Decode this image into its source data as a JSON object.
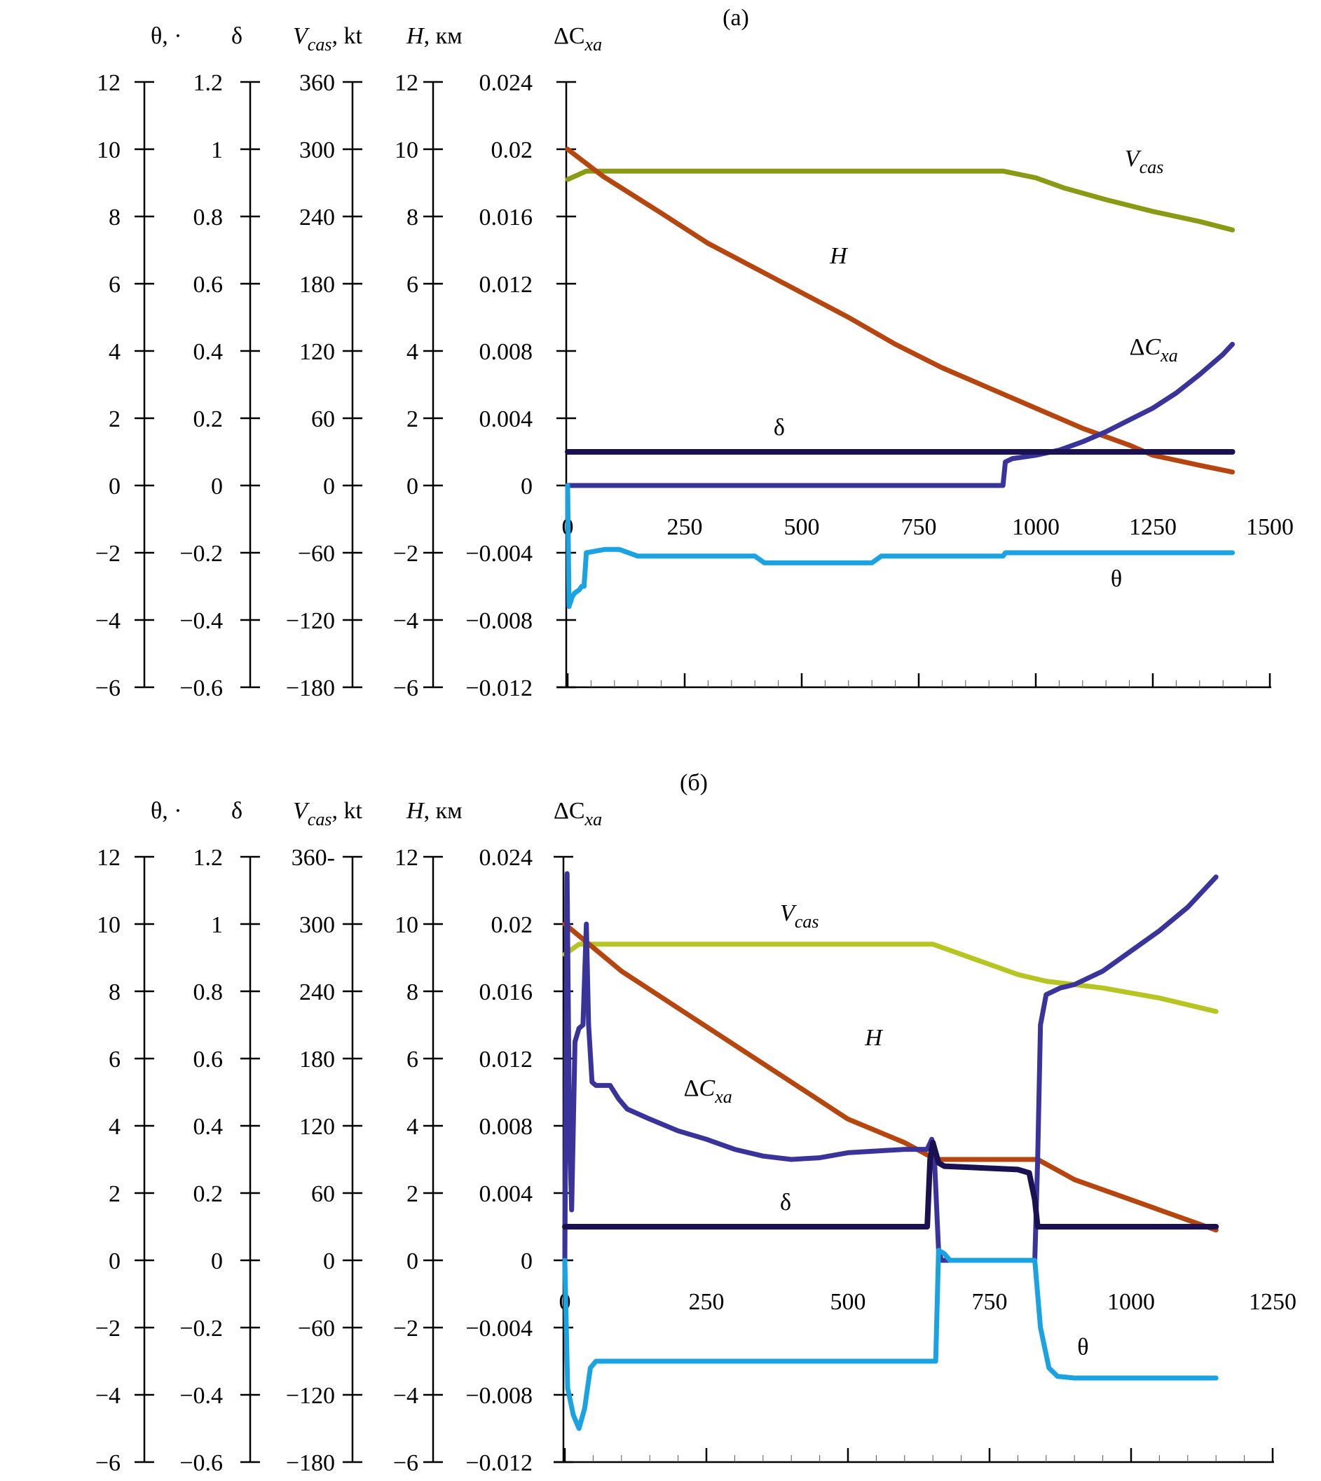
{
  "figure": {
    "panels": [
      "(a)",
      "(б)"
    ]
  },
  "axis_titles": {
    "theta": "θ, ·",
    "delta": "δ",
    "vcas_main": "V",
    "vcas_sub": "cas",
    "vcas_unit": ", kt",
    "h_main": "H",
    "h_unit": ", км",
    "dcxa_main": "ΔC",
    "dcxa_sub": "xa"
  },
  "left_axes": {
    "theta_ticks": [
      "12",
      "10",
      "8",
      "6",
      "4",
      "2",
      "0",
      "−2",
      "−4",
      "−6"
    ],
    "delta_ticks": [
      "1.2",
      "1",
      "0.8",
      "0.6",
      "0.4",
      "0.2",
      "0",
      "−0.2",
      "−0.4",
      "−0.6"
    ],
    "vcas_ticks_a": [
      "360",
      "300",
      "240",
      "180",
      "120",
      "60",
      "0",
      "−60",
      "−120",
      "−180"
    ],
    "vcas_ticks_b": [
      "360-",
      "300",
      "240",
      "180",
      "120",
      "60",
      "0",
      "−60",
      "−120",
      "−180"
    ],
    "h_ticks": [
      "12",
      "10",
      "8",
      "6",
      "4",
      "2",
      "0",
      "−2",
      "−4",
      "−6"
    ],
    "dcxa_ticks": [
      "0.024",
      "0.02",
      "0.016",
      "0.012",
      "0.008",
      "0.004",
      "0",
      "−0.004",
      "−0.008",
      "−0.012"
    ]
  },
  "colors": {
    "H": "#b5460f",
    "Vcas_a": "#8a9a14",
    "Vcas_b": "#b6c424",
    "dCxa": "#3a3399",
    "delta": "#1a1150",
    "theta": "#1aa3e0",
    "axis": "#000000"
  },
  "chart_data": [
    {
      "type": "line",
      "title": "(a)",
      "xlabel": "",
      "xlim": [
        0,
        1500
      ],
      "xticks": [
        "0",
        "250",
        "500",
        "750",
        "1000",
        "1250",
        "1500"
      ],
      "ylim": [
        -6,
        12
      ],
      "y_scale_note": "all series plotted on common scale: θ (deg) = value; δ = value/10; Vcas (kt) = value*30; H (km) = value; ΔCxa = value*0.002",
      "grid": false,
      "series": [
        {
          "name": "V",
          "sub": "cas",
          "color_key": "Vcas_a",
          "x": [
            0,
            40,
            200,
            500,
            930,
            1000,
            1060,
            1150,
            1250,
            1350,
            1420
          ],
          "y": [
            9.1,
            9.35,
            9.35,
            9.35,
            9.35,
            9.15,
            8.85,
            8.5,
            8.15,
            7.85,
            7.6
          ]
        },
        {
          "name": "H",
          "sub": "",
          "color_key": "H",
          "x": [
            0,
            75,
            200,
            300,
            450,
            600,
            700,
            800,
            900,
            1000,
            1100,
            1200,
            1250,
            1350,
            1420
          ],
          "y": [
            10,
            9.2,
            8.1,
            7.2,
            6.1,
            5.0,
            4.2,
            3.5,
            2.9,
            2.3,
            1.7,
            1.2,
            0.9,
            0.6,
            0.4
          ]
        },
        {
          "name": "ΔC",
          "sub": "xa",
          "color_key": "dCxa",
          "x": [
            0,
            930,
            935,
            950,
            1000,
            1050,
            1100,
            1150,
            1200,
            1250,
            1300,
            1350,
            1400,
            1420
          ],
          "y": [
            0,
            0,
            0.7,
            0.8,
            0.9,
            1.05,
            1.3,
            1.6,
            1.95,
            2.3,
            2.75,
            3.3,
            3.9,
            4.2
          ]
        },
        {
          "name": "δ",
          "sub": "",
          "color_key": "delta",
          "x": [
            0,
            1420
          ],
          "y": [
            1.0,
            1.0
          ]
        },
        {
          "name": "θ",
          "sub": "",
          "color_key": "theta",
          "x": [
            0,
            3,
            10,
            15,
            25,
            30,
            35,
            40,
            60,
            80,
            110,
            150,
            400,
            420,
            500,
            650,
            670,
            930,
            935,
            1420
          ],
          "y": [
            0,
            -3.6,
            -3.3,
            -3.2,
            -3.1,
            -3.0,
            -3.0,
            -2.0,
            -1.95,
            -1.9,
            -1.9,
            -2.1,
            -2.1,
            -2.3,
            -2.3,
            -2.3,
            -2.1,
            -2.1,
            -2.0,
            -2.0
          ]
        }
      ],
      "annotations": [
        {
          "text": "V",
          "sub": "cas",
          "x": 1190,
          "y": 9.5
        },
        {
          "text": "H",
          "sub": "",
          "x": 560,
          "y": 6.6
        },
        {
          "text": "ΔC",
          "sub": "xa",
          "x": 1200,
          "y": 3.9
        },
        {
          "text": "δ",
          "sub": "",
          "x": 440,
          "y": 1.5
        },
        {
          "text": "θ",
          "sub": "",
          "x": 1160,
          "y": -3.0
        }
      ]
    },
    {
      "type": "line",
      "title": "(б)",
      "xlabel": "",
      "xlim": [
        0,
        1250
      ],
      "xticks": [
        "0",
        "250",
        "500",
        "750",
        "1000",
        "1250"
      ],
      "ylim": [
        -6,
        12
      ],
      "y_scale_note": "all series plotted on common scale: θ (deg) = value; δ = value/10; Vcas (kt) = value*30; H (km) = value; ΔCxa = value*0.002",
      "grid": false,
      "series": [
        {
          "name": "V",
          "sub": "cas",
          "color_key": "Vcas_b",
          "x": [
            0,
            25,
            200,
            400,
            650,
            700,
            750,
            800,
            850,
            900,
            950,
            1000,
            1050,
            1100,
            1150
          ],
          "y": [
            9.1,
            9.4,
            9.4,
            9.4,
            9.4,
            9.1,
            8.8,
            8.5,
            8.3,
            8.2,
            8.1,
            7.95,
            7.8,
            7.6,
            7.4
          ]
        },
        {
          "name": "H",
          "sub": "",
          "color_key": "H",
          "x": [
            0,
            50,
            100,
            200,
            300,
            400,
            500,
            600,
            655,
            835,
            900,
            1000,
            1100,
            1150
          ],
          "y": [
            10,
            9.3,
            8.6,
            7.5,
            6.4,
            5.3,
            4.2,
            3.5,
            3.0,
            3.0,
            2.4,
            1.8,
            1.2,
            0.9
          ]
        },
        {
          "name": "ΔC",
          "sub": "xa",
          "color_key": "dCxa",
          "x": [
            0,
            4,
            8,
            12,
            18,
            25,
            32,
            38,
            42,
            48,
            55,
            80,
            95,
            110,
            150,
            200,
            250,
            300,
            350,
            400,
            450,
            500,
            550,
            600,
            640,
            648,
            652,
            660,
            665,
            830,
            835,
            840,
            850,
            875,
            900,
            950,
            1000,
            1050,
            1100,
            1150
          ],
          "y": [
            0,
            11.5,
            4.0,
            1.5,
            6.5,
            6.9,
            7.0,
            10.0,
            7.0,
            5.3,
            5.2,
            5.2,
            4.8,
            4.5,
            4.2,
            3.85,
            3.6,
            3.3,
            3.1,
            3.0,
            3.05,
            3.2,
            3.25,
            3.3,
            3.3,
            3.6,
            3.3,
            0.3,
            0,
            0,
            3.0,
            7.0,
            7.9,
            8.1,
            8.2,
            8.6,
            9.2,
            9.8,
            10.5,
            11.4
          ]
        },
        {
          "name": "δ",
          "sub": "",
          "color_key": "delta",
          "x": [
            0,
            640,
            645,
            650,
            660,
            670,
            800,
            820,
            830,
            835,
            1150
          ],
          "y": [
            1.0,
            1.0,
            3.0,
            3.5,
            2.9,
            2.8,
            2.7,
            2.6,
            1.8,
            1.0,
            1.0
          ]
        },
        {
          "name": "θ",
          "sub": "",
          "color_key": "theta",
          "x": [
            0,
            5,
            15,
            25,
            35,
            45,
            55,
            655,
            660,
            670,
            680,
            830,
            840,
            855,
            870,
            900,
            1150
          ],
          "y": [
            0,
            -3.8,
            -4.6,
            -5.0,
            -4.4,
            -3.2,
            -3.0,
            -3.0,
            0.3,
            0.2,
            0,
            0,
            -2.0,
            -3.2,
            -3.45,
            -3.5,
            -3.5
          ]
        }
      ],
      "annotations": [
        {
          "text": "V",
          "sub": "cas",
          "x": 380,
          "y": 10.1
        },
        {
          "text": "H",
          "sub": "",
          "x": 530,
          "y": 6.4
        },
        {
          "text": "ΔC",
          "sub": "xa",
          "x": 210,
          "y": 4.9
        },
        {
          "text": "δ",
          "sub": "",
          "x": 380,
          "y": 1.5
        },
        {
          "text": "θ",
          "sub": "",
          "x": 905,
          "y": -2.8
        }
      ]
    }
  ]
}
